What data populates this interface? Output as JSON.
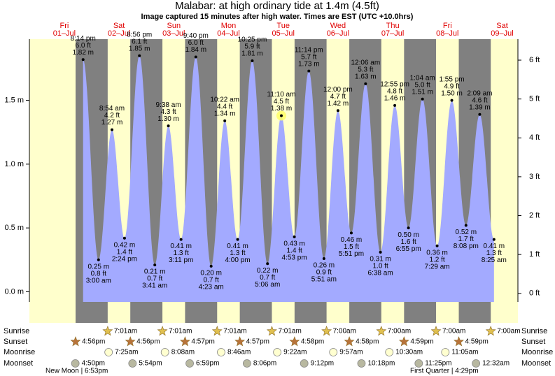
{
  "chart_data": {
    "type": "area",
    "title": "Malabar: at high  ordinary tide at 1.4m (4.5ft)",
    "subtitle": "Image captured 15 minutes after high water. Times are EST (UTC +10.0hrs)",
    "days": [
      "Fri",
      "Sat",
      "Sun",
      "Mon",
      "Tue",
      "Wed",
      "Thu",
      "Fri",
      "Sat"
    ],
    "dates": [
      "01–Jul",
      "02–Jul",
      "03–Jul",
      "04–Jul",
      "05–Jul",
      "06–Jul",
      "07–Jul",
      "08–Jul",
      "09–Jul"
    ],
    "color": "#a3aaff",
    "ylim": [
      -0.08,
      1.98
    ],
    "yticks": [
      {
        "value": 0,
        "label": "0.0 m"
      },
      {
        "value": 0.5,
        "label": "0.5 m"
      },
      {
        "value": 1,
        "label": "1.0 m"
      },
      {
        "value": 1.5,
        "label": "1.5 m"
      }
    ],
    "y2lim": [
      -0.22,
      6.54
    ],
    "y2ticks": [
      {
        "value": 0,
        "label": "0 ft"
      },
      {
        "value": 1,
        "label": "1 ft"
      },
      {
        "value": 2,
        "label": "2 ft"
      },
      {
        "value": 3,
        "label": "3 ft"
      },
      {
        "value": 4,
        "label": "4 ft"
      },
      {
        "value": 5,
        "label": "5 ft"
      },
      {
        "value": 6,
        "label": "6 ft"
      }
    ],
    "tides": {
      "dates": [
        "01–Jul",
        "02–Jul",
        "02–Jul",
        "02–Jul",
        "02–Jul",
        "03–Jul",
        "03–Jul",
        "03–Jul",
        "03–Jul",
        "04–Jul",
        "04–Jul",
        "04–Jul",
        "04–Jul",
        "05–Jul",
        "05–Jul",
        "05–Jul",
        "05–Jul",
        "06–Jul",
        "06–Jul",
        "06–Jul",
        "07–Jul",
        "07–Jul",
        "07–Jul",
        "07–Jul",
        "08–Jul",
        "08–Jul",
        "08–Jul",
        "08–Jul",
        "09–Jul",
        "09–Jul"
      ],
      "times": [
        "8:14 pm",
        "3:00 am",
        "8:54 am",
        "2:24 pm",
        "8:56 pm",
        "3:41 am",
        "9:38 am",
        "3:11 pm",
        "9:40 pm",
        "4:23 am",
        "10:22 am",
        "4:00 pm",
        "10:25 pm",
        "5:06 am",
        "11:10 am",
        "4:53 pm",
        "11:14 pm",
        "5:51 am",
        "12:00 pm",
        "5:51 pm",
        "12:06 am",
        "6:38 am",
        "12:55 pm",
        "6:55 pm",
        "1:04 am",
        "7:29 am",
        "1:55 pm",
        "8:08 pm",
        "2:09 am",
        "8:25 am"
      ],
      "values": [
        1.82,
        0.25,
        1.27,
        0.42,
        1.85,
        0.21,
        1.3,
        0.41,
        1.84,
        0.2,
        1.34,
        0.41,
        1.81,
        0.22,
        1.38,
        0.43,
        1.73,
        0.26,
        1.42,
        0.46,
        1.63,
        0.31,
        1.46,
        0.5,
        1.51,
        0.36,
        1.5,
        0.52,
        1.39,
        0.41
      ],
      "value_labels": [
        "1.82 m",
        "0.25 m",
        "1.27 m",
        "0.42 m",
        "1.85 m",
        "0.21 m",
        "1.30 m",
        "0.41 m",
        "1.84 m",
        "0.20 m",
        "1.34 m",
        "0.41 m",
        "1.81 m",
        "0.22 m",
        "1.38 m",
        "0.43 m",
        "1.73 m",
        "0.26 m",
        "1.42 m",
        "0.46 m",
        "1.63 m",
        "0.31 m",
        "1.46 m",
        "0.50 m",
        "1.51 m",
        "0.36 m",
        "1.50 m",
        "0.52 m",
        "1.39 m",
        "0.41 m"
      ],
      "ft_labels": [
        "6.0 ft",
        "0.8 ft",
        "4.2 ft",
        "1.4 ft",
        "6.1 ft",
        "0.7 ft",
        "4.3 ft",
        "1.3 ft",
        "6.0 ft",
        "0.7 ft",
        "4.4 ft",
        "1.3 ft",
        "5.9 ft",
        "0.7 ft",
        "4.5 ft",
        "1.4 ft",
        "5.7 ft",
        "0.9 ft",
        "4.7 ft",
        "1.5 ft",
        "5.3 ft",
        "1.0 ft",
        "4.8 ft",
        "1.6 ft",
        "5.0 ft",
        "1.2 ft",
        "4.9 ft",
        "1.7 ft",
        "4.6 ft",
        "1.3 ft"
      ]
    },
    "sun_moon": [
      {
        "name": "Sunrise",
        "dates": [
          "02–Jul",
          "03–Jul",
          "04–Jul",
          "05–Jul",
          "06–Jul",
          "07–Jul",
          "08–Jul",
          "09–Jul"
        ],
        "times": [
          "7:01am",
          "7:01am",
          "7:01am",
          "7:01am",
          "7:00am",
          "7:00am",
          "7:00am",
          "7:00am"
        ]
      },
      {
        "name": "Sunset",
        "dates": [
          "01–Jul",
          "02–Jul",
          "03–Jul",
          "04–Jul",
          "05–Jul",
          "06–Jul",
          "07–Jul",
          "08–Jul"
        ],
        "times": [
          "4:56pm",
          "4:56pm",
          "4:57pm",
          "4:57pm",
          "4:58pm",
          "4:58pm",
          "4:59pm",
          "4:59pm"
        ]
      },
      {
        "name": "Moonrise",
        "dates": [
          "02–Jul",
          "03–Jul",
          "04–Jul",
          "05–Jul",
          "06–Jul",
          "07–Jul",
          "08–Jul"
        ],
        "times": [
          "7:25am",
          "8:08am",
          "8:46am",
          "9:22am",
          "9:57am",
          "10:30am",
          "11:05am"
        ]
      },
      {
        "name": "Moonset",
        "dates": [
          "01–Jul",
          "02–Jul",
          "03–Jul",
          "04–Jul",
          "05–Jul",
          "06–Jul",
          "07–Jul",
          "09–Jul"
        ],
        "times": [
          "4:50pm",
          "5:54pm",
          "6:59pm",
          "8:06pm",
          "9:12pm",
          "10:18pm",
          "11:25pm",
          "12:32am"
        ]
      }
    ],
    "phases": [
      "New Moon | 6:53pm",
      "First Quarter | 4:29pm"
    ]
  }
}
